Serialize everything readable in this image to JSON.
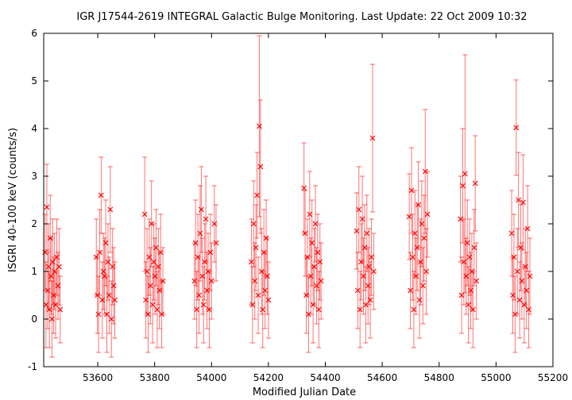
{
  "chart_data": {
    "type": "scatter",
    "title": "IGR J17544-2619    INTEGRAL Galactic Bulge Monitoring.  Last Update: 22 Oct 2009 10:32",
    "xlabel": "Modified Julian Date",
    "ylabel": "ISGRI 40-100 keV (counts/s)",
    "xlim": [
      53410,
      55200
    ],
    "ylim": [
      -1,
      6
    ],
    "x_ticks": [
      53600,
      53800,
      54000,
      54200,
      54400,
      54600,
      54800,
      55000,
      55200
    ],
    "y_ticks": [
      -1,
      0,
      1,
      2,
      3,
      4,
      5,
      6
    ],
    "grid": false,
    "marker": "x",
    "error_bars": true,
    "color": "#ff0000",
    "points": [
      {
        "x": 53415,
        "y": 1.4,
        "err": 0.8
      },
      {
        "x": 53418,
        "y": 0.3,
        "err": 0.9
      },
      {
        "x": 53421,
        "y": 2.35,
        "err": 0.9
      },
      {
        "x": 53424,
        "y": 0.6,
        "err": 0.8
      },
      {
        "x": 53427,
        "y": 1.1,
        "err": 0.9
      },
      {
        "x": 53430,
        "y": 0.2,
        "err": 0.8
      },
      {
        "x": 53433,
        "y": 1.7,
        "err": 0.9
      },
      {
        "x": 53436,
        "y": 0.9,
        "err": 0.8
      },
      {
        "x": 53439,
        "y": 0.0,
        "err": 0.8
      },
      {
        "x": 53442,
        "y": 1.2,
        "err": 0.9
      },
      {
        "x": 53445,
        "y": 0.5,
        "err": 0.8
      },
      {
        "x": 53448,
        "y": 1.0,
        "err": 0.8
      },
      {
        "x": 53452,
        "y": 0.3,
        "err": 0.7
      },
      {
        "x": 53456,
        "y": 1.3,
        "err": 0.8
      },
      {
        "x": 53460,
        "y": 0.7,
        "err": 0.7
      },
      {
        "x": 53464,
        "y": 1.1,
        "err": 0.8
      },
      {
        "x": 53468,
        "y": 0.2,
        "err": 0.7
      },
      {
        "x": 53595,
        "y": 1.3,
        "err": 0.8
      },
      {
        "x": 53599,
        "y": 0.5,
        "err": 0.8
      },
      {
        "x": 53603,
        "y": 0.1,
        "err": 0.8
      },
      {
        "x": 53607,
        "y": 1.4,
        "err": 0.9
      },
      {
        "x": 53612,
        "y": 2.6,
        "err": 0.8
      },
      {
        "x": 53616,
        "y": 0.4,
        "err": 0.8
      },
      {
        "x": 53620,
        "y": 1.0,
        "err": 0.8
      },
      {
        "x": 53624,
        "y": 0.9,
        "err": 0.8
      },
      {
        "x": 53628,
        "y": 1.6,
        "err": 0.9
      },
      {
        "x": 53632,
        "y": 0.1,
        "err": 0.8
      },
      {
        "x": 53636,
        "y": 1.2,
        "err": 0.8
      },
      {
        "x": 53640,
        "y": 0.5,
        "err": 0.8
      },
      {
        "x": 53644,
        "y": 2.3,
        "err": 0.9
      },
      {
        "x": 53648,
        "y": 0.0,
        "err": 0.8
      },
      {
        "x": 53652,
        "y": 1.1,
        "err": 0.8
      },
      {
        "x": 53656,
        "y": 0.7,
        "err": 0.8
      },
      {
        "x": 53660,
        "y": 0.4,
        "err": 0.8
      },
      {
        "x": 53765,
        "y": 2.2,
        "err": 1.2
      },
      {
        "x": 53769,
        "y": 0.4,
        "err": 0.8
      },
      {
        "x": 53773,
        "y": 1.0,
        "err": 0.9
      },
      {
        "x": 53777,
        "y": 0.1,
        "err": 0.8
      },
      {
        "x": 53781,
        "y": 1.3,
        "err": 0.8
      },
      {
        "x": 53785,
        "y": 0.7,
        "err": 0.8
      },
      {
        "x": 53789,
        "y": 2.0,
        "err": 0.9
      },
      {
        "x": 53793,
        "y": 0.3,
        "err": 0.8
      },
      {
        "x": 53797,
        "y": 1.2,
        "err": 0.8
      },
      {
        "x": 53801,
        "y": 0.9,
        "err": 0.8
      },
      {
        "x": 53805,
        "y": 1.5,
        "err": 0.8
      },
      {
        "x": 53809,
        "y": 0.2,
        "err": 0.8
      },
      {
        "x": 53813,
        "y": 1.1,
        "err": 0.8
      },
      {
        "x": 53817,
        "y": 0.6,
        "err": 0.8
      },
      {
        "x": 53821,
        "y": 1.4,
        "err": 0.8
      },
      {
        "x": 53825,
        "y": 0.1,
        "err": 0.7
      },
      {
        "x": 53829,
        "y": 0.8,
        "err": 0.7
      },
      {
        "x": 53940,
        "y": 0.8,
        "err": 0.8
      },
      {
        "x": 53944,
        "y": 1.6,
        "err": 0.9
      },
      {
        "x": 53948,
        "y": 0.2,
        "err": 0.8
      },
      {
        "x": 53952,
        "y": 1.3,
        "err": 0.9
      },
      {
        "x": 53956,
        "y": 0.5,
        "err": 0.8
      },
      {
        "x": 53960,
        "y": 1.8,
        "err": 1.0
      },
      {
        "x": 53964,
        "y": 2.3,
        "err": 0.9
      },
      {
        "x": 53968,
        "y": 0.9,
        "err": 0.8
      },
      {
        "x": 53972,
        "y": 0.3,
        "err": 0.8
      },
      {
        "x": 53976,
        "y": 1.2,
        "err": 0.8
      },
      {
        "x": 53980,
        "y": 2.1,
        "err": 0.9
      },
      {
        "x": 53984,
        "y": 0.6,
        "err": 0.8
      },
      {
        "x": 53988,
        "y": 1.0,
        "err": 0.8
      },
      {
        "x": 53992,
        "y": 0.2,
        "err": 0.8
      },
      {
        "x": 53996,
        "y": 1.4,
        "err": 0.8
      },
      {
        "x": 54000,
        "y": 0.8,
        "err": 0.8
      },
      {
        "x": 54010,
        "y": 2.0,
        "err": 0.8
      },
      {
        "x": 54016,
        "y": 1.6,
        "err": 0.8
      },
      {
        "x": 54140,
        "y": 1.2,
        "err": 0.9
      },
      {
        "x": 54144,
        "y": 0.3,
        "err": 0.8
      },
      {
        "x": 54148,
        "y": 2.0,
        "err": 0.9
      },
      {
        "x": 54152,
        "y": 0.8,
        "err": 0.8
      },
      {
        "x": 54156,
        "y": 1.5,
        "err": 0.9
      },
      {
        "x": 54160,
        "y": 2.6,
        "err": 0.9
      },
      {
        "x": 54164,
        "y": 0.5,
        "err": 0.8
      },
      {
        "x": 54168,
        "y": 4.05,
        "err": 1.9
      },
      {
        "x": 54172,
        "y": 3.2,
        "err": 1.4
      },
      {
        "x": 54176,
        "y": 1.0,
        "err": 0.9
      },
      {
        "x": 54180,
        "y": 0.2,
        "err": 0.8
      },
      {
        "x": 54184,
        "y": 1.4,
        "err": 0.9
      },
      {
        "x": 54188,
        "y": 0.6,
        "err": 0.8
      },
      {
        "x": 54192,
        "y": 1.7,
        "err": 0.8
      },
      {
        "x": 54196,
        "y": 0.9,
        "err": 0.8
      },
      {
        "x": 54200,
        "y": 0.4,
        "err": 0.8
      },
      {
        "x": 54325,
        "y": 2.75,
        "err": 0.95
      },
      {
        "x": 54329,
        "y": 1.8,
        "err": 0.9
      },
      {
        "x": 54333,
        "y": 0.5,
        "err": 0.8
      },
      {
        "x": 54337,
        "y": 1.3,
        "err": 0.8
      },
      {
        "x": 54341,
        "y": 0.1,
        "err": 0.8
      },
      {
        "x": 54345,
        "y": 2.2,
        "err": 0.9
      },
      {
        "x": 54349,
        "y": 0.9,
        "err": 0.8
      },
      {
        "x": 54353,
        "y": 1.6,
        "err": 0.9
      },
      {
        "x": 54357,
        "y": 0.3,
        "err": 0.8
      },
      {
        "x": 54361,
        "y": 1.1,
        "err": 0.8
      },
      {
        "x": 54365,
        "y": 2.0,
        "err": 0.8
      },
      {
        "x": 54369,
        "y": 0.7,
        "err": 0.8
      },
      {
        "x": 54373,
        "y": 1.4,
        "err": 0.8
      },
      {
        "x": 54377,
        "y": 0.2,
        "err": 0.8
      },
      {
        "x": 54381,
        "y": 1.2,
        "err": 0.8
      },
      {
        "x": 54385,
        "y": 0.8,
        "err": 0.8
      },
      {
        "x": 54510,
        "y": 1.85,
        "err": 0.8
      },
      {
        "x": 54514,
        "y": 0.6,
        "err": 0.8
      },
      {
        "x": 54518,
        "y": 2.3,
        "err": 0.9
      },
      {
        "x": 54522,
        "y": 0.2,
        "err": 0.8
      },
      {
        "x": 54526,
        "y": 1.2,
        "err": 0.8
      },
      {
        "x": 54530,
        "y": 2.1,
        "err": 0.9
      },
      {
        "x": 54534,
        "y": 0.9,
        "err": 0.8
      },
      {
        "x": 54538,
        "y": 1.5,
        "err": 0.9
      },
      {
        "x": 54542,
        "y": 0.3,
        "err": 0.8
      },
      {
        "x": 54546,
        "y": 1.8,
        "err": 0.8
      },
      {
        "x": 54550,
        "y": 0.7,
        "err": 0.8
      },
      {
        "x": 54554,
        "y": 1.1,
        "err": 0.8
      },
      {
        "x": 54558,
        "y": 0.4,
        "err": 0.8
      },
      {
        "x": 54562,
        "y": 1.3,
        "err": 0.8
      },
      {
        "x": 54566,
        "y": 3.8,
        "err": 1.55
      },
      {
        "x": 54570,
        "y": 1.0,
        "err": 0.8
      },
      {
        "x": 54695,
        "y": 2.15,
        "err": 0.9
      },
      {
        "x": 54699,
        "y": 0.6,
        "err": 0.8
      },
      {
        "x": 54703,
        "y": 2.7,
        "err": 0.9
      },
      {
        "x": 54707,
        "y": 1.3,
        "err": 0.9
      },
      {
        "x": 54711,
        "y": 0.2,
        "err": 0.8
      },
      {
        "x": 54715,
        "y": 1.8,
        "err": 0.9
      },
      {
        "x": 54719,
        "y": 0.9,
        "err": 0.8
      },
      {
        "x": 54723,
        "y": 1.5,
        "err": 0.9
      },
      {
        "x": 54727,
        "y": 2.4,
        "err": 0.9
      },
      {
        "x": 54731,
        "y": 0.4,
        "err": 0.8
      },
      {
        "x": 54735,
        "y": 1.2,
        "err": 0.9
      },
      {
        "x": 54739,
        "y": 2.0,
        "err": 0.9
      },
      {
        "x": 54743,
        "y": 0.7,
        "err": 0.8
      },
      {
        "x": 54747,
        "y": 1.7,
        "err": 0.9
      },
      {
        "x": 54751,
        "y": 3.1,
        "err": 1.3
      },
      {
        "x": 54755,
        "y": 1.0,
        "err": 0.9
      },
      {
        "x": 54759,
        "y": 2.2,
        "err": 0.9
      },
      {
        "x": 54875,
        "y": 2.1,
        "err": 0.9
      },
      {
        "x": 54879,
        "y": 0.5,
        "err": 0.8
      },
      {
        "x": 54883,
        "y": 2.8,
        "err": 1.2
      },
      {
        "x": 54887,
        "y": 1.2,
        "err": 0.9
      },
      {
        "x": 54891,
        "y": 3.05,
        "err": 2.5
      },
      {
        "x": 54895,
        "y": 0.9,
        "err": 0.8
      },
      {
        "x": 54899,
        "y": 1.6,
        "err": 0.9
      },
      {
        "x": 54903,
        "y": 0.3,
        "err": 0.8
      },
      {
        "x": 54907,
        "y": 1.3,
        "err": 0.8
      },
      {
        "x": 54911,
        "y": 0.6,
        "err": 0.8
      },
      {
        "x": 54915,
        "y": 1.0,
        "err": 0.8
      },
      {
        "x": 54919,
        "y": 0.2,
        "err": 0.8
      },
      {
        "x": 54923,
        "y": 1.5,
        "err": 0.8
      },
      {
        "x": 54927,
        "y": 2.85,
        "err": 1.0
      },
      {
        "x": 54931,
        "y": 0.8,
        "err": 0.8
      },
      {
        "x": 55055,
        "y": 1.8,
        "err": 0.9
      },
      {
        "x": 55059,
        "y": 0.5,
        "err": 0.8
      },
      {
        "x": 55063,
        "y": 1.3,
        "err": 0.9
      },
      {
        "x": 55067,
        "y": 0.1,
        "err": 0.8
      },
      {
        "x": 55071,
        "y": 4.02,
        "err": 1.0
      },
      {
        "x": 55075,
        "y": 1.0,
        "err": 0.9
      },
      {
        "x": 55079,
        "y": 2.5,
        "err": 1.0
      },
      {
        "x": 55083,
        "y": 0.4,
        "err": 0.8
      },
      {
        "x": 55087,
        "y": 1.5,
        "err": 0.9
      },
      {
        "x": 55091,
        "y": 0.8,
        "err": 0.8
      },
      {
        "x": 55095,
        "y": 2.45,
        "err": 1.0
      },
      {
        "x": 55099,
        "y": 0.3,
        "err": 0.8
      },
      {
        "x": 55103,
        "y": 1.1,
        "err": 0.8
      },
      {
        "x": 55107,
        "y": 0.6,
        "err": 0.8
      },
      {
        "x": 55111,
        "y": 1.9,
        "err": 0.9
      },
      {
        "x": 55115,
        "y": 0.2,
        "err": 0.8
      },
      {
        "x": 55119,
        "y": 0.9,
        "err": 0.8
      }
    ]
  }
}
